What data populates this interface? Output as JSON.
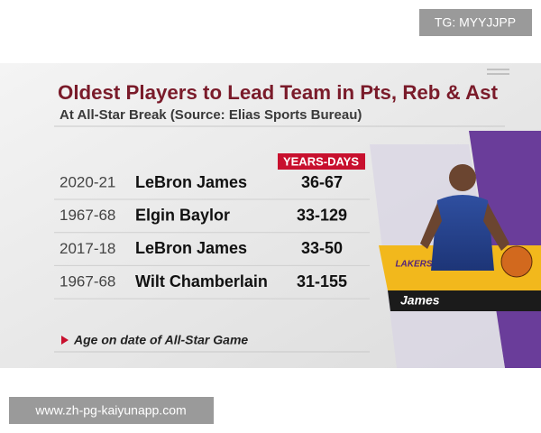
{
  "watermark": "TG: MYYJJPP",
  "graphic": {
    "title": "Oldest Players to Lead Team in Pts, Reb & Ast",
    "subtitle": "At All-Star Break (Source: Elias Sports Bureau)",
    "column_header": "YEARS-DAYS",
    "rows": [
      [
        "2020-21",
        "LeBron James",
        "36-67"
      ],
      [
        "1967-68",
        "Elgin Baylor",
        "33-129"
      ],
      [
        "2017-18",
        "LeBron James",
        "33-50"
      ],
      [
        "1967-68",
        "Wilt Chamberlain",
        "31-155"
      ]
    ],
    "footnote": "Age on date of All-Star Game",
    "team_logo": "LAKERS",
    "player_caption": "James"
  },
  "footer": "www.zh-pg-kaiyunapp.com"
}
